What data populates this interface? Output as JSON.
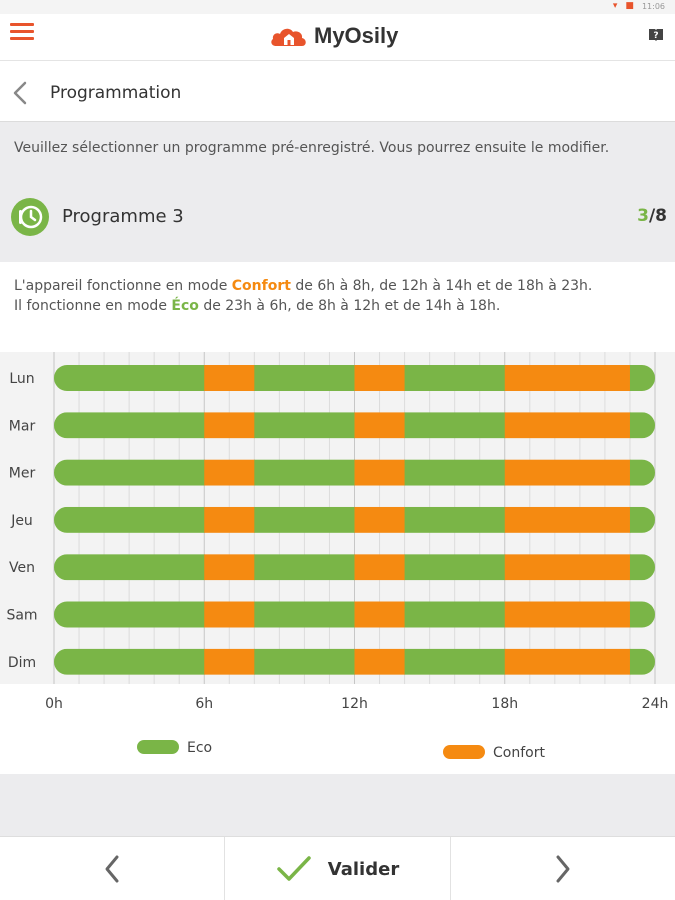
{
  "status_bar": {
    "time": "11:06"
  },
  "header": {
    "app_name": "MyOsily"
  },
  "nav": {
    "title": "Programmation"
  },
  "intro": {
    "text": "Veuillez sélectionner un programme pré-enregistré. Vous pourrez ensuite le modifier."
  },
  "program": {
    "name": "Programme 3",
    "current": "3",
    "total": "/8"
  },
  "description": {
    "line1_prefix": "L'appareil fonctionne en mode ",
    "line1_mode": "Confort",
    "line1_suffix": " de 6h à 8h, de 12h à 14h et de 18h à 23h.",
    "line2_prefix": "Il fonctionne en mode ",
    "line2_mode": "Éco",
    "line2_suffix": " de 23h à 6h, de 8h à 12h et de 14h à 18h."
  },
  "chart_data": {
    "type": "bar",
    "orientation": "horizontal-stacked-timeline",
    "categories": [
      "Lun",
      "Mar",
      "Mer",
      "Jeu",
      "Ven",
      "Sam",
      "Dim"
    ],
    "x_ticks": [
      "0h",
      "6h",
      "12h",
      "18h",
      "24h"
    ],
    "xlim": [
      0,
      24
    ],
    "grid": true,
    "legend": [
      {
        "name": "Eco",
        "color": "#7ab547"
      },
      {
        "name": "Confort",
        "color": "#f58a11"
      }
    ],
    "schedule": [
      {
        "mode": "Eco",
        "start": 0,
        "end": 6
      },
      {
        "mode": "Confort",
        "start": 6,
        "end": 8
      },
      {
        "mode": "Eco",
        "start": 8,
        "end": 12
      },
      {
        "mode": "Confort",
        "start": 12,
        "end": 14
      },
      {
        "mode": "Eco",
        "start": 14,
        "end": 18
      },
      {
        "mode": "Confort",
        "start": 18,
        "end": 23
      },
      {
        "mode": "Eco",
        "start": 23,
        "end": 24
      }
    ]
  },
  "bottom_bar": {
    "validate_label": "Valider"
  },
  "colors": {
    "accent": "#e8542c",
    "eco": "#7ab547",
    "confort": "#f58a11"
  },
  "icons": {
    "menu": "hamburger-menu-icon",
    "logo": "house-cloud-logo-icon",
    "help": "help-book-icon",
    "back": "chevron-left-icon",
    "program": "clock-program-icon",
    "prev": "chevron-left-icon",
    "validate": "checkmark-icon",
    "next": "chevron-right-icon"
  }
}
